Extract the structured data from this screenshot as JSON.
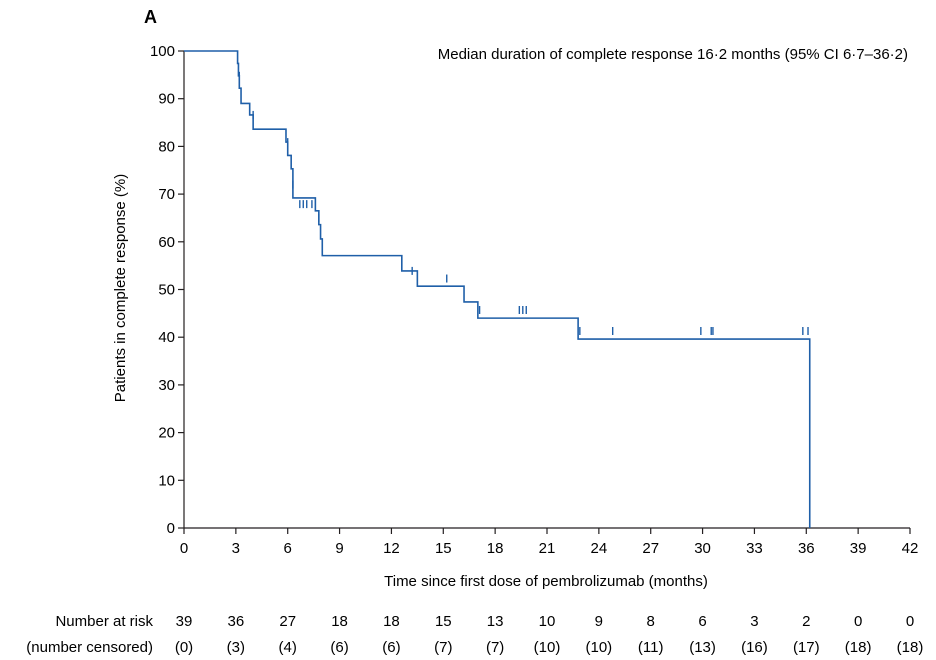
{
  "chart_data": {
    "type": "line",
    "panel_label": "A",
    "annotation": "Median duration of complete response 16·2 months (95% CI 6·7–36·2)",
    "xlabel": "Time since first dose of pembrolizumab (months)",
    "ylabel": "Patients in complete response (%)",
    "xlim": [
      0,
      42
    ],
    "ylim": [
      0,
      100
    ],
    "x_ticks": [
      0,
      3,
      6,
      9,
      12,
      15,
      18,
      21,
      24,
      27,
      30,
      33,
      36,
      39,
      42
    ],
    "y_ticks": [
      0,
      10,
      20,
      30,
      40,
      50,
      60,
      70,
      80,
      90,
      100
    ],
    "grid": false,
    "line_color": "#1f5fa8",
    "series": [
      {
        "step_x": [
          0,
          3.1,
          3.15,
          3.2,
          3.3,
          3.8,
          4.0,
          5.9,
          6.0,
          6.2,
          6.3,
          7.6,
          7.8,
          7.9,
          8.0,
          12.6,
          13.5,
          16.2,
          17.0,
          22.8,
          36.2
        ],
        "step_y": [
          100,
          97.4,
          94.8,
          92.2,
          89.0,
          86.6,
          83.6,
          80.9,
          78.1,
          75.3,
          69.2,
          66.5,
          63.6,
          60.6,
          57.1,
          53.9,
          50.7,
          47.4,
          44.0,
          39.6,
          0
        ],
        "end_x": 36.2,
        "censor_x": [
          3.2,
          4.0,
          6.0,
          6.3,
          6.7,
          6.9,
          7.1,
          7.4,
          7.8,
          8.0,
          13.2,
          15.2,
          17.1,
          19.4,
          19.6,
          19.8,
          22.9,
          24.8,
          29.9,
          30.5,
          30.6,
          35.8,
          36.1
        ],
        "censor_y": [
          94.8,
          86.6,
          80.9,
          72.0,
          67.9,
          67.9,
          67.9,
          67.9,
          65.0,
          58.9,
          53.9,
          52.3,
          45.7,
          45.7,
          45.7,
          45.7,
          41.3,
          41.3,
          41.3,
          41.3,
          41.3,
          41.3,
          41.3
        ]
      }
    ],
    "risk_table": {
      "row1_label": "Number at risk",
      "row2_label": "(number censored)",
      "at_risk": [
        "39",
        "36",
        "27",
        "18",
        "18",
        "15",
        "13",
        "10",
        "9",
        "8",
        "6",
        "3",
        "2",
        "0",
        "0"
      ],
      "censored": [
        "(0)",
        "(3)",
        "(4)",
        "(6)",
        "(6)",
        "(7)",
        "(7)",
        "(10)",
        "(10)",
        "(11)",
        "(13)",
        "(16)",
        "(17)",
        "(18)",
        "(18)"
      ]
    }
  }
}
